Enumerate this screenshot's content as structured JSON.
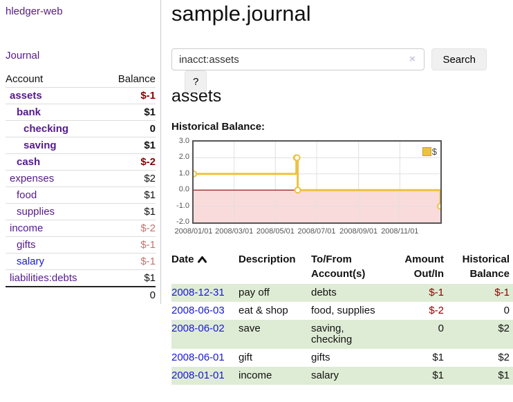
{
  "app": {
    "title": "hledger-web"
  },
  "sidebar": {
    "journal_link": "Journal",
    "accounts_header": {
      "account": "Account",
      "balance": "Balance"
    },
    "accounts": [
      {
        "name": "assets",
        "balance": "$-1",
        "depth": 1,
        "bold": true,
        "balance_color": "negative-strong"
      },
      {
        "name": "bank",
        "balance": "$1",
        "depth": 2,
        "bold": true
      },
      {
        "name": "checking",
        "balance": "0",
        "depth": 3,
        "bold": true
      },
      {
        "name": "saving",
        "balance": "$1",
        "depth": 3,
        "bold": true
      },
      {
        "name": "cash",
        "balance": "$-2",
        "depth": 2,
        "bold": true,
        "balance_color": "negative-strong"
      },
      {
        "name": "expenses",
        "balance": "$2",
        "depth": 1
      },
      {
        "name": "food",
        "balance": "$1",
        "depth": 2
      },
      {
        "name": "supplies",
        "balance": "$1",
        "depth": 2
      },
      {
        "name": "income",
        "balance": "$-2",
        "depth": 1,
        "balance_color": "negative-dim"
      },
      {
        "name": "gifts",
        "balance": "$-1",
        "depth": 2,
        "balance_color": "negative-dim"
      },
      {
        "name": "salary",
        "balance": "$-1",
        "depth": 2,
        "name_color": "blue",
        "balance_color": "negative-dim"
      },
      {
        "name": "liabilities:debts",
        "balance": "$1",
        "depth": 1
      }
    ],
    "total": "0"
  },
  "header": {
    "title": "sample.journal"
  },
  "search": {
    "value": "inacct:assets",
    "clear_icon": "×",
    "button": "Search",
    "help_button": "?"
  },
  "account_page": {
    "title": "assets",
    "chart_label": "Historical Balance:"
  },
  "chart_data": {
    "type": "line",
    "title": "Historical Balance:",
    "step": true,
    "series": [
      {
        "name": "$",
        "color": "#edc240",
        "points": [
          [
            "2008-01-01",
            1
          ],
          [
            "2008-06-01",
            2
          ],
          [
            "2008-06-02",
            2
          ],
          [
            "2008-06-03",
            0
          ],
          [
            "2008-12-31",
            -1
          ]
        ]
      }
    ],
    "x_ticks": [
      "2008/01/01",
      "2008/03/01",
      "2008/05/01",
      "2008/07/01",
      "2008/09/01",
      "2008/11/01"
    ],
    "y_ticks": [
      "3.0",
      "2.0",
      "1.0",
      "0.0",
      "-1.0",
      "-2.0"
    ],
    "ylim": [
      -2,
      3
    ],
    "xlim": [
      "2008-01-01",
      "2008-12-31"
    ],
    "grid": true,
    "legend_position": "top-right",
    "legend_label": "$",
    "zero_line_color": "#8b0000",
    "negative_fill": "#fadbdb"
  },
  "register": {
    "columns": [
      {
        "label": "Date",
        "sort": "asc"
      },
      {
        "label": "Description"
      },
      {
        "label": "To/From Account(s)"
      },
      {
        "label": "Amount Out/In"
      },
      {
        "label": "Historical Balance"
      }
    ],
    "rows": [
      {
        "date": "2008-12-31",
        "description": "pay off",
        "accounts": "debts",
        "amount": "$-1",
        "balance": "$-1",
        "amount_negative": true,
        "balance_negative": true,
        "shaded": true
      },
      {
        "date": "2008-06-03",
        "description": "eat & shop",
        "accounts": "food, supplies",
        "amount": "$-2",
        "balance": "0",
        "amount_negative": true,
        "balance_negative": false,
        "shaded": false
      },
      {
        "date": "2008-06-02",
        "description": "save",
        "accounts": "saving, checking",
        "amount": "0",
        "balance": "$2",
        "amount_negative": false,
        "balance_negative": false,
        "shaded": true
      },
      {
        "date": "2008-06-01",
        "description": "gift",
        "accounts": "gifts",
        "amount": "$1",
        "balance": "$2",
        "amount_negative": false,
        "balance_negative": false,
        "shaded": false
      },
      {
        "date": "2008-01-01",
        "description": "income",
        "accounts": "salary",
        "amount": "$1",
        "balance": "$1",
        "amount_negative": false,
        "balance_negative": false,
        "shaded": true
      }
    ]
  },
  "colors": {
    "link_purple": "#551a8b",
    "link_blue": "#1717d6",
    "negative_strong": "#8b0000",
    "negative_dim": "#c4736e",
    "row_stripe_green": "#dfecd5",
    "series_gold": "#edc240",
    "chart_border": "#545454"
  }
}
